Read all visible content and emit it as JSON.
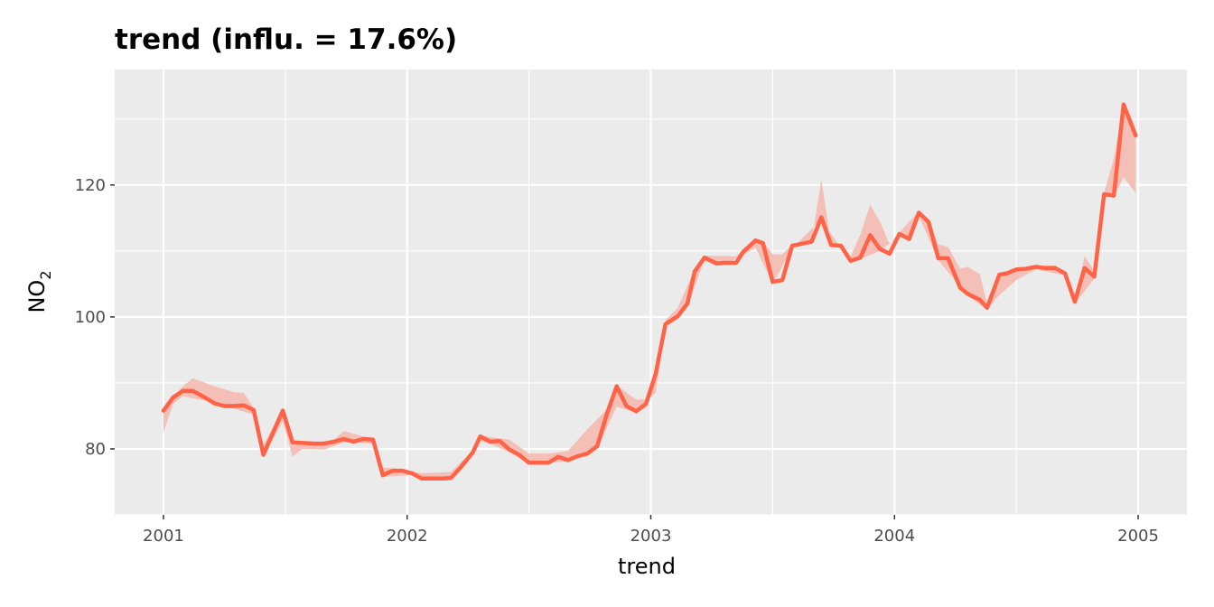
{
  "chart_data": {
    "type": "line",
    "title": "trend (influ. = 17.6%)",
    "xlabel": "trend",
    "ylabel_main": "NO",
    "ylabel_sub": "2",
    "xlim": [
      2000.8,
      2005.2
    ],
    "ylim": [
      70,
      137.5
    ],
    "x_ticks": [
      2001,
      2002,
      2003,
      2004,
      2005
    ],
    "y_ticks": [
      80,
      100,
      120
    ],
    "grid": true,
    "colors": {
      "line": "#FF6347",
      "ribbon": "#F4BFB6",
      "panel": "#EBEBEB",
      "grid": "#FFFFFF"
    },
    "series": [
      {
        "values": [
          [
            2001.0,
            85.8
          ],
          [
            2001.04,
            87.8
          ],
          [
            2001.08,
            88.8
          ],
          [
            2001.12,
            88.8
          ],
          [
            2001.17,
            87.8
          ],
          [
            2001.21,
            86.9
          ],
          [
            2001.25,
            86.5
          ],
          [
            2001.29,
            86.5
          ],
          [
            2001.33,
            86.6
          ],
          [
            2001.37,
            85.9
          ],
          [
            2001.41,
            79.1
          ],
          [
            2001.45,
            82.5
          ],
          [
            2001.49,
            85.8
          ],
          [
            2001.53,
            81.0
          ],
          [
            2001.57,
            80.9
          ],
          [
            2001.62,
            80.8
          ],
          [
            2001.66,
            80.8
          ],
          [
            2001.7,
            81.1
          ],
          [
            2001.74,
            81.5
          ],
          [
            2001.78,
            81.1
          ],
          [
            2001.82,
            81.5
          ],
          [
            2001.86,
            81.4
          ],
          [
            2001.9,
            76.0
          ],
          [
            2001.94,
            76.7
          ],
          [
            2001.98,
            76.7
          ],
          [
            2002.02,
            76.3
          ],
          [
            2002.06,
            75.5
          ],
          [
            2002.11,
            75.5
          ],
          [
            2002.15,
            75.5
          ],
          [
            2002.18,
            75.6
          ],
          [
            2002.22,
            77.2
          ],
          [
            2002.27,
            79.5
          ],
          [
            2002.3,
            81.9
          ],
          [
            2002.34,
            81.1
          ],
          [
            2002.38,
            81.2
          ],
          [
            2002.42,
            79.9
          ],
          [
            2002.46,
            79.1
          ],
          [
            2002.5,
            77.9
          ],
          [
            2002.54,
            77.9
          ],
          [
            2002.58,
            77.9
          ],
          [
            2002.62,
            78.8
          ],
          [
            2002.66,
            78.3
          ],
          [
            2002.7,
            78.9
          ],
          [
            2002.74,
            79.3
          ],
          [
            2002.78,
            80.4
          ],
          [
            2002.82,
            85.3
          ],
          [
            2002.86,
            89.5
          ],
          [
            2002.9,
            86.5
          ],
          [
            2002.94,
            85.7
          ],
          [
            2002.98,
            86.8
          ],
          [
            2003.02,
            91.4
          ],
          [
            2003.06,
            98.9
          ],
          [
            2003.11,
            100.1
          ],
          [
            2003.15,
            102.0
          ],
          [
            2003.18,
            106.9
          ],
          [
            2003.22,
            109.0
          ],
          [
            2003.27,
            108.1
          ],
          [
            2003.3,
            108.2
          ],
          [
            2003.35,
            108.2
          ],
          [
            2003.38,
            109.9
          ],
          [
            2003.43,
            111.6
          ],
          [
            2003.46,
            111.2
          ],
          [
            2003.5,
            105.3
          ],
          [
            2003.54,
            105.6
          ],
          [
            2003.58,
            110.8
          ],
          [
            2003.62,
            111.1
          ],
          [
            2003.66,
            111.4
          ],
          [
            2003.7,
            115.1
          ],
          [
            2003.74,
            110.9
          ],
          [
            2003.78,
            110.8
          ],
          [
            2003.82,
            108.5
          ],
          [
            2003.86,
            109.0
          ],
          [
            2003.9,
            112.4
          ],
          [
            2003.94,
            110.3
          ],
          [
            2003.98,
            109.6
          ],
          [
            2004.02,
            112.6
          ],
          [
            2004.06,
            111.8
          ],
          [
            2004.1,
            115.8
          ],
          [
            2004.14,
            114.4
          ],
          [
            2004.18,
            108.9
          ],
          [
            2004.22,
            108.9
          ],
          [
            2004.27,
            104.4
          ],
          [
            2004.3,
            103.5
          ],
          [
            2004.35,
            102.6
          ],
          [
            2004.38,
            101.4
          ],
          [
            2004.43,
            106.4
          ],
          [
            2004.46,
            106.6
          ],
          [
            2004.5,
            107.2
          ],
          [
            2004.54,
            107.3
          ],
          [
            2004.58,
            107.6
          ],
          [
            2004.62,
            107.4
          ],
          [
            2004.66,
            107.4
          ],
          [
            2004.7,
            106.6
          ],
          [
            2004.74,
            102.3
          ],
          [
            2004.78,
            107.4
          ],
          [
            2004.82,
            106.1
          ],
          [
            2004.86,
            118.6
          ],
          [
            2004.9,
            118.4
          ],
          [
            2004.94,
            132.2
          ],
          [
            2004.99,
            127.5
          ]
        ]
      }
    ],
    "ribbon": {
      "upper": [
        [
          2001.0,
          86.0
        ],
        [
          2001.08,
          89.5
        ],
        [
          2001.12,
          90.7
        ],
        [
          2001.21,
          89.5
        ],
        [
          2001.29,
          88.6
        ],
        [
          2001.33,
          88.5
        ],
        [
          2001.37,
          86.2
        ],
        [
          2001.41,
          80.6
        ],
        [
          2001.49,
          85.9
        ],
        [
          2001.53,
          81.1
        ],
        [
          2001.62,
          80.9
        ],
        [
          2001.7,
          81.4
        ],
        [
          2001.74,
          82.7
        ],
        [
          2001.78,
          82.3
        ],
        [
          2001.86,
          81.5
        ],
        [
          2001.9,
          77.2
        ],
        [
          2001.98,
          76.9
        ],
        [
          2002.06,
          76.3
        ],
        [
          2002.18,
          76.5
        ],
        [
          2002.27,
          79.8
        ],
        [
          2002.3,
          82.0
        ],
        [
          2002.42,
          81.4
        ],
        [
          2002.5,
          79.3
        ],
        [
          2002.58,
          79.3
        ],
        [
          2002.66,
          79.7
        ],
        [
          2002.74,
          83.0
        ],
        [
          2002.82,
          86.0
        ],
        [
          2002.86,
          89.6
        ],
        [
          2002.94,
          87.5
        ],
        [
          2002.98,
          87.5
        ],
        [
          2003.02,
          91.6
        ],
        [
          2003.06,
          99.5
        ],
        [
          2003.11,
          101.4
        ],
        [
          2003.18,
          107.2
        ],
        [
          2003.22,
          109.3
        ],
        [
          2003.35,
          109.2
        ],
        [
          2003.43,
          111.9
        ],
        [
          2003.46,
          111.5
        ],
        [
          2003.5,
          109.5
        ],
        [
          2003.54,
          109.5
        ],
        [
          2003.58,
          110.9
        ],
        [
          2003.66,
          111.6
        ],
        [
          2003.7,
          120.8
        ],
        [
          2003.74,
          111.2
        ],
        [
          2003.78,
          111.0
        ],
        [
          2003.82,
          109.2
        ],
        [
          2003.86,
          112.5
        ],
        [
          2003.9,
          117.0
        ],
        [
          2003.94,
          114.5
        ],
        [
          2003.98,
          111.0
        ],
        [
          2004.02,
          112.8
        ],
        [
          2004.1,
          116.0
        ],
        [
          2004.14,
          114.6
        ],
        [
          2004.18,
          111.0
        ],
        [
          2004.22,
          110.6
        ],
        [
          2004.27,
          107.3
        ],
        [
          2004.3,
          107.6
        ],
        [
          2004.35,
          106.5
        ],
        [
          2004.38,
          102.0
        ],
        [
          2004.43,
          106.6
        ],
        [
          2004.5,
          107.4
        ],
        [
          2004.58,
          107.8
        ],
        [
          2004.66,
          107.8
        ],
        [
          2004.7,
          106.8
        ],
        [
          2004.74,
          102.5
        ],
        [
          2004.78,
          109.2
        ],
        [
          2004.82,
          107.0
        ],
        [
          2004.86,
          118.8
        ],
        [
          2004.9,
          124.0
        ],
        [
          2004.94,
          132.4
        ],
        [
          2004.99,
          127.8
        ]
      ],
      "lower": [
        [
          2001.0,
          82.5
        ],
        [
          2001.04,
          86.8
        ],
        [
          2001.08,
          88.0
        ],
        [
          2001.17,
          87.3
        ],
        [
          2001.29,
          86.1
        ],
        [
          2001.37,
          85.2
        ],
        [
          2001.41,
          78.9
        ],
        [
          2001.49,
          84.2
        ],
        [
          2001.53,
          78.8
        ],
        [
          2001.57,
          80.0
        ],
        [
          2001.66,
          79.9
        ],
        [
          2001.74,
          81.0
        ],
        [
          2001.86,
          80.8
        ],
        [
          2001.9,
          75.8
        ],
        [
          2002.02,
          76.0
        ],
        [
          2002.06,
          75.2
        ],
        [
          2002.18,
          75.3
        ],
        [
          2002.27,
          79.2
        ],
        [
          2002.3,
          81.2
        ],
        [
          2002.34,
          80.8
        ],
        [
          2002.42,
          79.5
        ],
        [
          2002.5,
          77.7
        ],
        [
          2002.66,
          78.1
        ],
        [
          2002.78,
          80.0
        ],
        [
          2002.86,
          86.4
        ],
        [
          2002.94,
          85.5
        ],
        [
          2003.02,
          88.6
        ],
        [
          2003.06,
          98.6
        ],
        [
          2003.15,
          101.6
        ],
        [
          2003.22,
          108.6
        ],
        [
          2003.3,
          107.8
        ],
        [
          2003.43,
          110.5
        ],
        [
          2003.5,
          105.0
        ],
        [
          2003.58,
          110.4
        ],
        [
          2003.7,
          114.8
        ],
        [
          2003.82,
          108.2
        ],
        [
          2003.94,
          110.0
        ],
        [
          2004.02,
          112.3
        ],
        [
          2004.06,
          111.5
        ],
        [
          2004.1,
          115.3
        ],
        [
          2004.18,
          108.6
        ],
        [
          2004.3,
          103.2
        ],
        [
          2004.38,
          101.1
        ],
        [
          2004.43,
          103.3
        ],
        [
          2004.5,
          105.6
        ],
        [
          2004.58,
          107.2
        ],
        [
          2004.7,
          106.3
        ],
        [
          2004.74,
          102.0
        ],
        [
          2004.82,
          105.8
        ],
        [
          2004.86,
          118.3
        ],
        [
          2004.9,
          118.2
        ],
        [
          2004.94,
          121.2
        ],
        [
          2004.99,
          118.8
        ]
      ]
    }
  }
}
